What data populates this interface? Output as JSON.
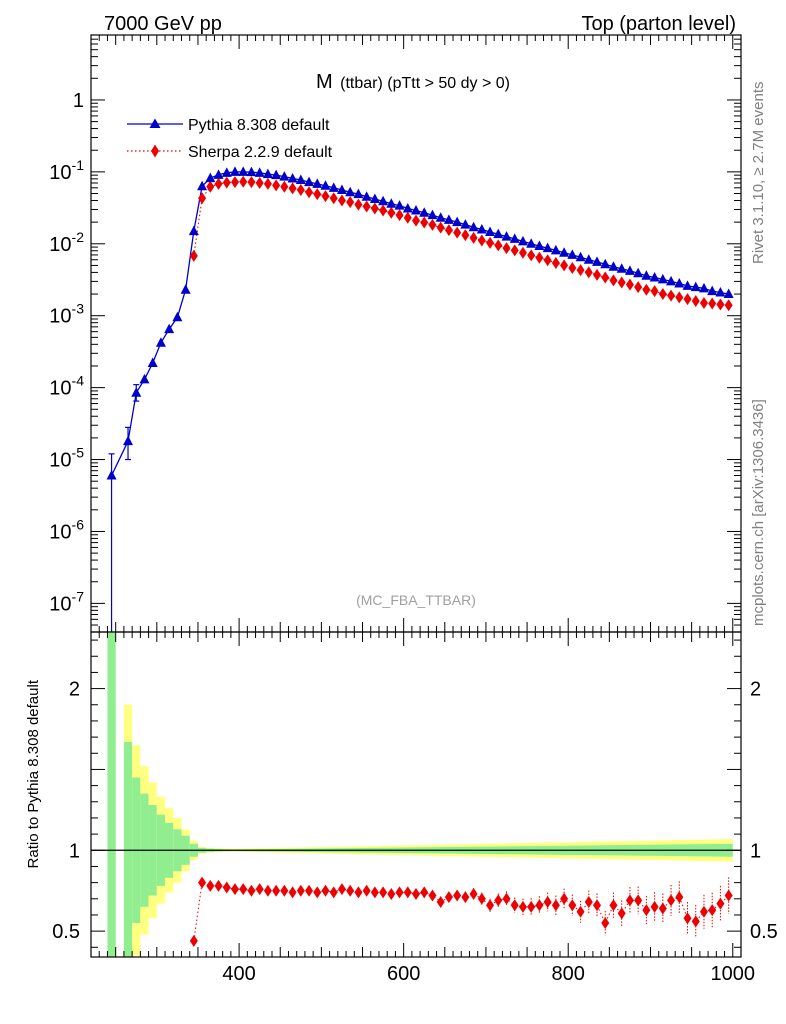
{
  "header": {
    "left": "7000 GeV pp",
    "right": "Top (parton level)"
  },
  "side_labels": {
    "rivet": "Rivet 3.1.10, ≥ 2.7M events",
    "mcplots": "mcplots.cern.ch [arXiv:1306.3436]"
  },
  "chart_data": [
    {
      "type": "line",
      "title_main": "M",
      "title_sub": "(ttbar) (pTtt > 50 dy > 0)",
      "watermark": "(MC_FBA_TTBAR)",
      "yscale": "log",
      "xlim": [
        220,
        1010
      ],
      "ylim": [
        4e-08,
        8
      ],
      "y_ticks": [
        {
          "value": 1e-07,
          "base": "10",
          "exp": "-7"
        },
        {
          "value": 1e-06,
          "base": "10",
          "exp": "-6"
        },
        {
          "value": 1e-05,
          "base": "10",
          "exp": "-5"
        },
        {
          "value": 0.0001,
          "base": "10",
          "exp": "-4"
        },
        {
          "value": 0.001,
          "base": "10",
          "exp": "-3"
        },
        {
          "value": 0.01,
          "base": "10",
          "exp": "-2"
        },
        {
          "value": 0.1,
          "base": "10",
          "exp": "-1"
        },
        {
          "value": 1,
          "base": "1",
          "exp": ""
        }
      ],
      "legend_position": "top-left",
      "series": [
        {
          "name": "Pythia 8.308 default",
          "color": "#0000cc",
          "marker": "triangle",
          "line": "solid",
          "x": [
            245,
            265,
            275,
            285,
            295,
            305,
            315,
            325,
            335,
            345,
            355,
            365,
            375,
            385,
            395,
            405,
            415,
            425,
            435,
            445,
            455,
            465,
            475,
            485,
            495,
            505,
            515,
            525,
            535,
            545,
            555,
            565,
            575,
            585,
            595,
            605,
            615,
            625,
            635,
            645,
            655,
            665,
            675,
            685,
            695,
            705,
            715,
            725,
            735,
            745,
            755,
            765,
            775,
            785,
            795,
            805,
            815,
            825,
            835,
            845,
            855,
            865,
            875,
            885,
            895,
            905,
            915,
            925,
            935,
            945,
            955,
            965,
            975,
            985,
            995
          ],
          "y": [
            6e-06,
            1.8e-05,
            8.5e-05,
            0.00013,
            0.00022,
            0.00042,
            0.00065,
            0.00095,
            0.0023,
            0.015,
            0.063,
            0.082,
            0.091,
            0.097,
            0.1,
            0.1,
            0.099,
            0.097,
            0.093,
            0.09,
            0.086,
            0.081,
            0.077,
            0.072,
            0.068,
            0.064,
            0.06,
            0.056,
            0.052,
            0.049,
            0.045,
            0.042,
            0.039,
            0.036,
            0.034,
            0.031,
            0.029,
            0.027,
            0.025,
            0.023,
            0.0215,
            0.02,
            0.0185,
            0.017,
            0.0158,
            0.0146,
            0.0136,
            0.0126,
            0.0117,
            0.0108,
            0.01,
            0.0093,
            0.0087,
            0.0081,
            0.0075,
            0.007,
            0.0065,
            0.006,
            0.0056,
            0.0052,
            0.0048,
            0.0045,
            0.0042,
            0.0039,
            0.0036,
            0.0034,
            0.0032,
            0.003,
            0.0028,
            0.0026,
            0.0025,
            0.0024,
            0.0022,
            0.0021,
            0.002
          ],
          "err_low": [
            2.5e-08,
            1e-05,
            6.5e-05,
            0,
            0,
            0,
            0,
            0,
            0,
            0,
            0,
            0,
            0,
            0,
            0,
            0,
            0,
            0,
            0,
            0,
            0,
            0,
            0,
            0,
            0,
            0,
            0,
            0,
            0,
            0,
            0,
            0,
            0,
            0,
            0,
            0,
            0,
            0,
            0,
            0,
            0,
            0,
            0,
            0,
            0,
            0,
            0,
            0,
            0,
            0,
            0,
            0,
            0,
            0,
            0,
            0,
            0,
            0,
            0,
            0,
            0,
            0,
            0,
            0,
            0,
            0,
            0,
            0,
            0,
            0,
            0,
            0,
            0,
            0,
            0
          ],
          "err_high": [
            1.2e-05,
            2.8e-05,
            0.00011,
            0,
            0,
            0,
            0,
            0,
            0,
            0,
            0,
            0,
            0,
            0,
            0,
            0,
            0,
            0,
            0,
            0,
            0,
            0,
            0,
            0,
            0,
            0,
            0,
            0,
            0,
            0,
            0,
            0,
            0,
            0,
            0,
            0,
            0,
            0,
            0,
            0,
            0,
            0,
            0,
            0,
            0,
            0,
            0,
            0,
            0,
            0,
            0,
            0,
            0,
            0,
            0,
            0,
            0,
            0,
            0,
            0,
            0,
            0,
            0,
            0,
            0,
            0,
            0,
            0,
            0,
            0,
            0,
            0,
            0,
            0,
            0
          ]
        },
        {
          "name": "Sherpa 2.2.9 default",
          "color": "#ee0000",
          "marker": "diamond",
          "line": "dotted",
          "x": [
            345,
            355,
            365,
            375,
            385,
            395,
            405,
            415,
            425,
            435,
            445,
            455,
            465,
            475,
            485,
            495,
            505,
            515,
            525,
            535,
            545,
            555,
            565,
            575,
            585,
            595,
            605,
            615,
            625,
            635,
            645,
            655,
            665,
            675,
            685,
            695,
            705,
            715,
            725,
            735,
            745,
            755,
            765,
            775,
            785,
            795,
            805,
            815,
            825,
            835,
            845,
            855,
            865,
            875,
            885,
            895,
            905,
            915,
            925,
            935,
            945,
            955,
            965,
            975,
            985,
            995
          ],
          "y": [
            0.0068,
            0.043,
            0.062,
            0.068,
            0.071,
            0.072,
            0.073,
            0.072,
            0.07,
            0.068,
            0.065,
            0.062,
            0.059,
            0.056,
            0.052,
            0.049,
            0.046,
            0.043,
            0.04,
            0.038,
            0.035,
            0.033,
            0.031,
            0.029,
            0.027,
            0.025,
            0.023,
            0.021,
            0.0198,
            0.0183,
            0.0168,
            0.0155,
            0.0143,
            0.0132,
            0.0121,
            0.0111,
            0.0103,
            0.0095,
            0.0087,
            0.0081,
            0.0075,
            0.0069,
            0.0064,
            0.0059,
            0.0054,
            0.005,
            0.0046,
            0.0043,
            0.004,
            0.0037,
            0.0034,
            0.0031,
            0.0029,
            0.0027,
            0.0025,
            0.0023,
            0.0022,
            0.002,
            0.0019,
            0.0018,
            0.0017,
            0.0016,
            0.0015,
            0.00148,
            0.00143,
            0.0014
          ]
        }
      ]
    },
    {
      "type": "line",
      "ylabel": "Ratio to Pythia 8.308 default",
      "xlim": [
        220,
        1010
      ],
      "ylim": [
        0.34,
        2.35
      ],
      "x_ticks": [
        400,
        600,
        800,
        1000
      ],
      "y_ticks": [
        0.5,
        1,
        2
      ],
      "reference_line": 1,
      "band_colors": {
        "inner": "#90ee90",
        "outer": "#ffff80"
      },
      "uncertainty_bands": {
        "x_edges": [
          240,
          250,
          260,
          270,
          280,
          290,
          300,
          310,
          320,
          330,
          340,
          350,
          360,
          370,
          380,
          390,
          1000
        ],
        "inner": [
          2.0,
          null,
          0.67,
          0.45,
          0.35,
          0.28,
          0.22,
          0.17,
          0.13,
          0.09,
          0.04,
          0.015,
          0.01,
          0.008,
          0.006,
          0.005
        ],
        "outer": [
          3.0,
          null,
          0.9,
          0.65,
          0.52,
          0.42,
          0.33,
          0.26,
          0.2,
          0.13,
          0.06,
          0.02,
          0.015,
          0.012,
          0.01,
          0.009
        ],
        "tail": {
          "inner_start": 0.005,
          "inner_end": 0.04,
          "outer_start": 0.009,
          "outer_end": 0.07
        }
      },
      "series": [
        {
          "name": "Sherpa 2.2.9 default",
          "color": "#ee0000",
          "marker": "diamond",
          "line": "dotted",
          "x": [
            345,
            355,
            365,
            375,
            385,
            395,
            405,
            415,
            425,
            435,
            445,
            455,
            465,
            475,
            485,
            495,
            505,
            515,
            525,
            535,
            545,
            555,
            565,
            575,
            585,
            595,
            605,
            615,
            625,
            635,
            645,
            655,
            665,
            675,
            685,
            695,
            705,
            715,
            725,
            735,
            745,
            755,
            765,
            775,
            785,
            795,
            805,
            815,
            825,
            835,
            845,
            855,
            865,
            875,
            885,
            895,
            905,
            915,
            925,
            935,
            945,
            955,
            965,
            975,
            985,
            995
          ],
          "y": [
            0.44,
            0.8,
            0.78,
            0.78,
            0.77,
            0.76,
            0.76,
            0.75,
            0.76,
            0.75,
            0.75,
            0.75,
            0.74,
            0.75,
            0.75,
            0.74,
            0.75,
            0.74,
            0.76,
            0.75,
            0.74,
            0.75,
            0.74,
            0.74,
            0.73,
            0.74,
            0.74,
            0.73,
            0.74,
            0.72,
            0.68,
            0.71,
            0.72,
            0.71,
            0.73,
            0.7,
            0.66,
            0.69,
            0.7,
            0.66,
            0.65,
            0.65,
            0.66,
            0.68,
            0.66,
            0.7,
            0.66,
            0.62,
            0.68,
            0.66,
            0.55,
            0.66,
            0.61,
            0.69,
            0.69,
            0.63,
            0.65,
            0.64,
            0.69,
            0.71,
            0.58,
            0.56,
            0.62,
            0.63,
            0.67,
            0.72
          ]
        }
      ]
    }
  ]
}
